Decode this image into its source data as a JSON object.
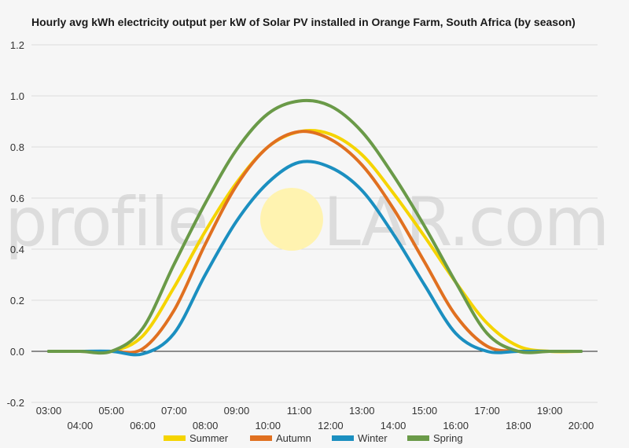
{
  "chart_data": {
    "type": "line",
    "title": "Hourly avg kWh electricity output per kW of Solar PV installed in Orange Farm, South Africa (by season)",
    "xlabel": "",
    "ylabel": "",
    "ylim": [
      -0.2,
      1.2
    ],
    "yticks": [
      "1.2",
      "1.0",
      "0.8",
      "0.6",
      "0.4",
      "0.2",
      "0.0",
      "-0.2"
    ],
    "ytick_values": [
      1.2,
      1.0,
      0.8,
      0.6,
      0.4,
      0.2,
      0.0,
      -0.2
    ],
    "x": [
      "03:00",
      "04:00",
      "05:00",
      "06:00",
      "07:00",
      "08:00",
      "09:00",
      "10:00",
      "11:00",
      "12:00",
      "13:00",
      "14:00",
      "15:00",
      "16:00",
      "17:00",
      "18:00",
      "19:00",
      "20:00"
    ],
    "grid": true,
    "legend_position": "bottom",
    "series": [
      {
        "name": "Summer",
        "color": "#f5d400",
        "values": [
          0.0,
          0.0,
          0.0,
          0.06,
          0.25,
          0.47,
          0.66,
          0.8,
          0.86,
          0.85,
          0.77,
          0.62,
          0.45,
          0.27,
          0.11,
          0.02,
          0.0,
          0.0
        ]
      },
      {
        "name": "Autumn",
        "color": "#e07020",
        "values": [
          0.0,
          0.0,
          0.0,
          0.01,
          0.16,
          0.42,
          0.65,
          0.8,
          0.86,
          0.83,
          0.73,
          0.56,
          0.35,
          0.14,
          0.02,
          0.0,
          0.0,
          0.0
        ]
      },
      {
        "name": "Winter",
        "color": "#1b8fc0",
        "values": [
          0.0,
          0.0,
          0.0,
          -0.01,
          0.07,
          0.3,
          0.51,
          0.66,
          0.74,
          0.72,
          0.63,
          0.46,
          0.26,
          0.07,
          0.0,
          0.0,
          0.0,
          0.0
        ]
      },
      {
        "name": "Spring",
        "color": "#6a9a48",
        "values": [
          0.0,
          0.0,
          0.0,
          0.09,
          0.34,
          0.58,
          0.79,
          0.93,
          0.98,
          0.96,
          0.86,
          0.69,
          0.49,
          0.27,
          0.07,
          0.0,
          0.0,
          0.0
        ]
      }
    ]
  },
  "watermark": {
    "left": "profile",
    "right": "LAR.com",
    "sun_color": "#fff3b0"
  }
}
